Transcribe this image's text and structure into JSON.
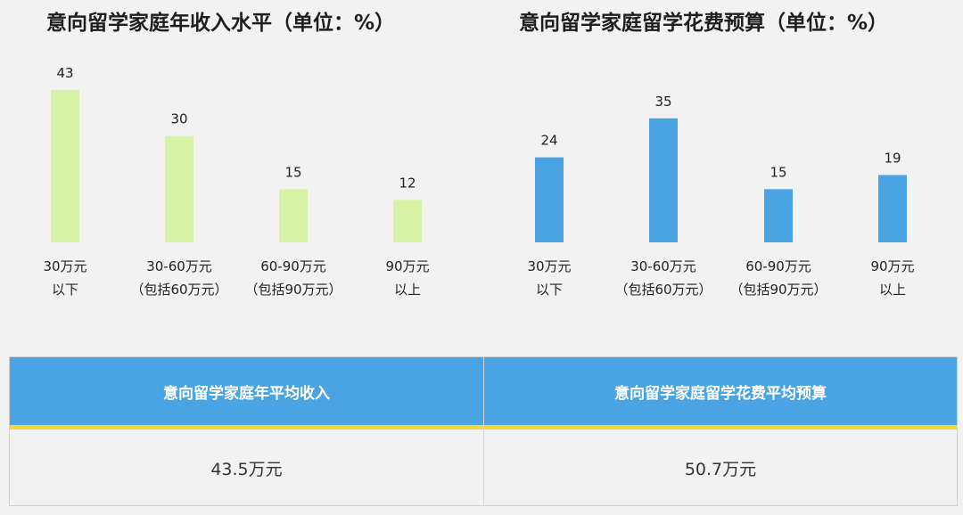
{
  "chart_data": [
    {
      "type": "bar",
      "title": "意向留学家庭年收入水平（单位：%）",
      "categories": [
        [
          "30万元",
          "以下"
        ],
        [
          "30-60万元",
          "（包括60万元）"
        ],
        [
          "60-90万元",
          "（包括90万元）"
        ],
        [
          "90万元",
          "以上"
        ]
      ],
      "values": [
        43,
        30,
        15,
        12
      ],
      "color": "#d6f2a5",
      "ylim": [
        0,
        43
      ],
      "grid": false
    },
    {
      "type": "bar",
      "title": "意向留学家庭留学花费预算（单位：%）",
      "categories": [
        [
          "30万元",
          "以下"
        ],
        [
          "30-60万元",
          "（包括60万元）"
        ],
        [
          "60-90万元",
          "（包括90万元）"
        ],
        [
          "90万元",
          "以上"
        ]
      ],
      "values": [
        24,
        35,
        15,
        19
      ],
      "color": "#4aa3e2",
      "ylim": [
        0,
        43
      ],
      "grid": false
    }
  ],
  "summary": {
    "left_header": "意向留学家庭年平均收入",
    "left_value": "43.5万元",
    "right_header": "意向留学家庭留学花费平均预算",
    "right_value": "50.7万元",
    "header_color": "#4aa3e2",
    "accent_color": "#f5d633"
  }
}
